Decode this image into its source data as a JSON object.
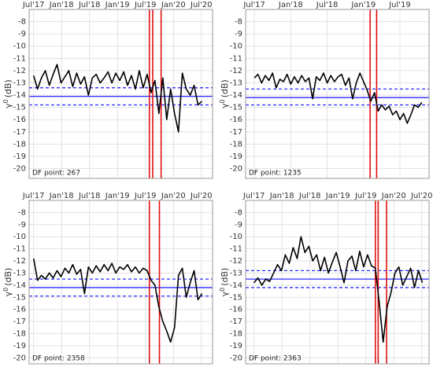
{
  "chart_data": [
    {
      "type": "line",
      "annotation": "DF point:  267",
      "ylabel": {
        "symbol": "γ",
        "superscript": "0",
        "unit": "(dB)"
      },
      "xlim": [
        2017.42,
        2020.7
      ],
      "ylim": [
        -20.8,
        -7.0
      ],
      "xticks": [
        {
          "value": 2017.5,
          "label": "Jul'17"
        },
        {
          "value": 2018.0,
          "label": "Jan'18"
        },
        {
          "value": 2018.5,
          "label": "Jul'18"
        },
        {
          "value": 2019.0,
          "label": "Jan'19"
        },
        {
          "value": 2019.5,
          "label": "Jul'19"
        },
        {
          "value": 2020.0,
          "label": "Jan'20"
        },
        {
          "value": 2020.5,
          "label": "Jul'20"
        }
      ],
      "yticks": [
        -20,
        -19,
        -18,
        -17,
        -16,
        -15,
        -14,
        -13,
        -12,
        -11,
        -10,
        -9,
        -8
      ],
      "grid": true,
      "color": "#000000",
      "x": [
        2017.5,
        2017.57,
        2017.64,
        2017.71,
        2017.78,
        2017.85,
        2017.92,
        2017.99,
        2018.06,
        2018.13,
        2018.2,
        2018.27,
        2018.34,
        2018.41,
        2018.48,
        2018.55,
        2018.62,
        2018.69,
        2018.76,
        2018.83,
        2018.9,
        2018.97,
        2019.04,
        2019.11,
        2019.18,
        2019.25,
        2019.32,
        2019.39,
        2019.46,
        2019.53,
        2019.6,
        2019.67,
        2019.74,
        2019.81,
        2019.88,
        2019.95,
        2020.02,
        2020.09,
        2020.16,
        2020.23,
        2020.3,
        2020.37,
        2020.44,
        2020.51
      ],
      "values": [
        -12.4,
        -13.5,
        -12.6,
        -12.0,
        -13.2,
        -12.3,
        -11.5,
        -13.0,
        -12.5,
        -12.0,
        -13.3,
        -12.2,
        -13.1,
        -12.5,
        -14.0,
        -12.6,
        -12.3,
        -13.0,
        -12.6,
        -12.1,
        -13.0,
        -12.2,
        -12.8,
        -12.1,
        -13.2,
        -12.4,
        -13.5,
        -12.0,
        -13.4,
        -12.3,
        -13.8,
        -12.8,
        -15.5,
        -12.6,
        -16.0,
        -13.5,
        -15.5,
        -17.0,
        -12.2,
        -13.5,
        -14.0,
        -13.2,
        -14.8,
        -14.5
      ],
      "reference_lines": [
        {
          "value": -13.4,
          "dashed": true
        },
        {
          "value": -14.1,
          "dashed": false
        },
        {
          "value": -14.8,
          "dashed": true
        }
      ],
      "reference_color": "#2b2bff",
      "event_lines": [
        2019.57,
        2019.63,
        2019.78
      ],
      "event_color": "#e01010"
    },
    {
      "type": "line",
      "annotation": "DF point:  1235",
      "ylabel": {
        "symbol": "γ",
        "superscript": "0",
        "unit": "(dB)"
      },
      "xlim": [
        2017.38,
        2019.9
      ],
      "ylim": [
        -20.8,
        -7.0
      ],
      "xticks": [
        {
          "value": 2017.5,
          "label": "Jul'17"
        },
        {
          "value": 2018.0,
          "label": "Jan'18"
        },
        {
          "value": 2018.5,
          "label": "Jul'18"
        },
        {
          "value": 2019.0,
          "label": "Jan'19"
        },
        {
          "value": 2019.5,
          "label": "Jul'19"
        }
      ],
      "yticks": [
        -20,
        -19,
        -18,
        -17,
        -16,
        -15,
        -14,
        -13,
        -12,
        -11,
        -10,
        -9,
        -8
      ],
      "grid": true,
      "color": "#000000",
      "x": [
        2017.5,
        2017.55,
        2017.6,
        2017.65,
        2017.7,
        2017.75,
        2017.8,
        2017.85,
        2017.9,
        2017.95,
        2018.0,
        2018.05,
        2018.1,
        2018.15,
        2018.2,
        2018.25,
        2018.3,
        2018.35,
        2018.4,
        2018.45,
        2018.5,
        2018.55,
        2018.6,
        2018.65,
        2018.7,
        2018.75,
        2018.8,
        2018.85,
        2018.9,
        2018.95,
        2019.0,
        2019.05,
        2019.1,
        2019.15,
        2019.2,
        2019.25,
        2019.3,
        2019.35,
        2019.4,
        2019.45,
        2019.5,
        2019.55,
        2019.6,
        2019.65,
        2019.7,
        2019.75,
        2019.8
      ],
      "values": [
        -12.6,
        -12.3,
        -13.0,
        -12.4,
        -12.8,
        -12.2,
        -13.4,
        -12.7,
        -12.9,
        -12.3,
        -13.1,
        -12.5,
        -13.0,
        -12.4,
        -12.9,
        -12.6,
        -14.3,
        -12.5,
        -12.8,
        -12.2,
        -13.0,
        -12.4,
        -12.9,
        -12.5,
        -12.3,
        -13.2,
        -12.6,
        -14.3,
        -13.0,
        -12.2,
        -12.9,
        -13.6,
        -14.5,
        -13.8,
        -15.3,
        -14.8,
        -15.2,
        -14.9,
        -15.6,
        -15.3,
        -16.0,
        -15.5,
        -16.3,
        -15.6,
        -14.8,
        -15.0,
        -14.6
      ],
      "reference_lines": [
        {
          "value": -13.5,
          "dashed": true
        },
        {
          "value": -14.2,
          "dashed": false
        },
        {
          "value": -14.8,
          "dashed": true
        }
      ],
      "reference_color": "#2b2bff",
      "event_lines": [
        2019.09,
        2019.18
      ],
      "event_color": "#e01010"
    },
    {
      "type": "line",
      "annotation": "DF point:  2358",
      "ylabel": {
        "symbol": "γ",
        "superscript": "0",
        "unit": "(dB)"
      },
      "xlim": [
        2017.42,
        2020.7
      ],
      "ylim": [
        -20.5,
        -7.0
      ],
      "xticks": [
        {
          "value": 2017.5,
          "label": "Jul'17"
        },
        {
          "value": 2018.0,
          "label": "Jan'18"
        },
        {
          "value": 2018.5,
          "label": "Jul'18"
        },
        {
          "value": 2019.0,
          "label": "Jan'19"
        },
        {
          "value": 2019.5,
          "label": "Jul'19"
        },
        {
          "value": 2020.0,
          "label": "Jan'20"
        },
        {
          "value": 2020.5,
          "label": "Jul'20"
        }
      ],
      "yticks": [
        -20,
        -19,
        -18,
        -17,
        -16,
        -15,
        -14,
        -13,
        -12,
        -11,
        -10,
        -9,
        -8
      ],
      "grid": true,
      "color": "#000000",
      "x": [
        2017.5,
        2017.57,
        2017.64,
        2017.71,
        2017.78,
        2017.85,
        2017.92,
        2017.99,
        2018.06,
        2018.13,
        2018.2,
        2018.27,
        2018.34,
        2018.41,
        2018.48,
        2018.55,
        2018.62,
        2018.69,
        2018.76,
        2018.83,
        2018.9,
        2018.97,
        2019.04,
        2019.11,
        2019.18,
        2019.25,
        2019.32,
        2019.39,
        2019.46,
        2019.53,
        2019.6,
        2019.67,
        2019.74,
        2019.81,
        2019.88,
        2019.95,
        2020.02,
        2020.09,
        2020.16,
        2020.23,
        2020.3,
        2020.37,
        2020.44,
        2020.51
      ],
      "values": [
        -11.8,
        -13.6,
        -13.2,
        -13.5,
        -13.0,
        -13.4,
        -12.8,
        -13.3,
        -12.6,
        -13.0,
        -12.3,
        -13.1,
        -12.7,
        -14.7,
        -12.5,
        -13.0,
        -12.4,
        -12.9,
        -12.3,
        -12.8,
        -12.2,
        -13.0,
        -12.5,
        -12.7,
        -12.3,
        -12.9,
        -12.5,
        -13.0,
        -12.6,
        -12.8,
        -13.6,
        -14.0,
        -15.8,
        -17.0,
        -17.8,
        -18.7,
        -17.5,
        -13.2,
        -12.6,
        -15.0,
        -13.8,
        -12.8,
        -15.2,
        -14.7
      ],
      "reference_lines": [
        {
          "value": -13.5,
          "dashed": true
        },
        {
          "value": -14.2,
          "dashed": false
        },
        {
          "value": -14.9,
          "dashed": true
        }
      ],
      "reference_color": "#2b2bff",
      "event_lines": [
        2019.57,
        2019.75
      ],
      "event_color": "#e01010"
    },
    {
      "type": "line",
      "annotation": "DF point:  2363",
      "ylabel": {
        "symbol": "γ",
        "superscript": "0",
        "unit": "(dB)"
      },
      "xlim": [
        2017.35,
        2020.63
      ],
      "ylim": [
        -20.5,
        -7.0
      ],
      "xticks": [
        {
          "value": 2017.5,
          "label": "Jul'17"
        },
        {
          "value": 2018.0,
          "label": "Jan'18"
        },
        {
          "value": 2018.5,
          "label": "Jul'18"
        },
        {
          "value": 2019.0,
          "label": "Jan'19"
        },
        {
          "value": 2019.5,
          "label": "Jul'19"
        },
        {
          "value": 2020.0,
          "label": "Jan'20"
        },
        {
          "value": 2020.5,
          "label": "Jul'20"
        }
      ],
      "yticks": [
        -20,
        -19,
        -18,
        -17,
        -16,
        -15,
        -14,
        -13,
        -12,
        -11,
        -10,
        -9,
        -8
      ],
      "grid": true,
      "color": "#000000",
      "x": [
        2017.5,
        2017.57,
        2017.64,
        2017.71,
        2017.78,
        2017.85,
        2017.92,
        2017.99,
        2018.06,
        2018.13,
        2018.2,
        2018.27,
        2018.34,
        2018.41,
        2018.48,
        2018.55,
        2018.62,
        2018.69,
        2018.76,
        2018.83,
        2018.9,
        2018.97,
        2019.04,
        2019.11,
        2019.18,
        2019.25,
        2019.32,
        2019.39,
        2019.46,
        2019.53,
        2019.6,
        2019.67,
        2019.74,
        2019.81,
        2019.88,
        2019.95,
        2020.02,
        2020.09,
        2020.16,
        2020.23,
        2020.3,
        2020.37,
        2020.44,
        2020.51
      ],
      "values": [
        -13.8,
        -13.4,
        -14.0,
        -13.5,
        -13.7,
        -13.0,
        -12.3,
        -12.8,
        -11.5,
        -12.2,
        -10.9,
        -11.8,
        -10.0,
        -11.3,
        -10.8,
        -12.0,
        -11.5,
        -12.8,
        -11.7,
        -13.0,
        -12.1,
        -11.3,
        -12.5,
        -13.8,
        -12.0,
        -11.6,
        -12.8,
        -11.2,
        -12.5,
        -11.5,
        -12.4,
        -12.6,
        -15.5,
        -18.7,
        -15.8,
        -14.6,
        -13.0,
        -12.5,
        -14.0,
        -13.3,
        -12.6,
        -14.2,
        -12.8,
        -13.8
      ],
      "reference_lines": [
        {
          "value": -12.8,
          "dashed": true
        },
        {
          "value": -13.5,
          "dashed": false
        },
        {
          "value": -14.2,
          "dashed": true
        }
      ],
      "reference_color": "#2b2bff",
      "event_lines": [
        2019.67,
        2019.72,
        2019.87
      ],
      "event_color": "#e01010"
    }
  ]
}
